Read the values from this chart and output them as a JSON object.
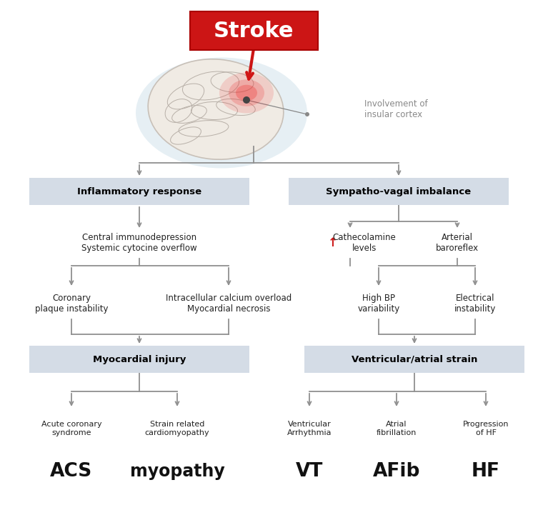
{
  "bg_color": "#ffffff",
  "title": "Stroke",
  "title_bg": "#cc1515",
  "title_text_color": "#ffffff",
  "box1_text": "Inflammatory response",
  "box2_text": "Sympatho-vagal imbalance",
  "box3_text": "Myocardial injury",
  "box4_text": "Ventricular/atrial strain",
  "box_bg": "#d4dce6",
  "box_text_color": "#000000",
  "mid1_text": "Central immunodepression\nSystemic cytocine overflow",
  "mid2_left_text": "Cathecolamine\nlevels",
  "mid2_right_text": "Arterial\nbaroreflex",
  "mid3_left_text": "Coronary\nplaque instability",
  "mid3_mid_text": "Intracellular calcium overload\nMyocardial necrosis",
  "mid3_right_text": "High BP\nvariability",
  "mid3_far_text": "Electrical\ninstability",
  "insular_text": "Involvement of\ninsular cortex",
  "final_labels": [
    "ACS",
    "myopathy",
    "VT",
    "AFib",
    "HF"
  ],
  "final_sublabels": [
    "Acute coronary\nsyndrome",
    "Strain related\ncardiomyopathy",
    "Ventricular\nArrhythmia",
    "Atrial\nfibrillation",
    "Progression\nof HF"
  ],
  "arrow_color": "#909090",
  "red_arrow_color": "#cc1515",
  "red_up_arrow": "↑"
}
